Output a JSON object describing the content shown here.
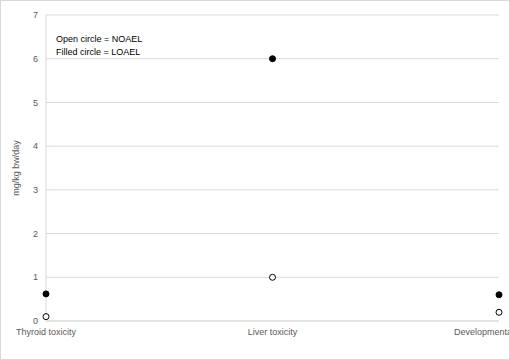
{
  "chart_data": {
    "type": "scatter",
    "y_label": "mg/kg bw/day",
    "annotations": [
      "Open circle = NOAEL",
      "Filled circle = LOAEL"
    ],
    "categories": [
      "Thyroid toxicity",
      "Liver toxicity",
      "Developmental toxicity"
    ],
    "series": [
      {
        "color": "#000000",
        "marker": "open",
        "values": [
          0.1,
          1,
          0.2
        ]
      },
      {
        "color": "#000000",
        "marker": "filled",
        "values": [
          0.62,
          6,
          0.6
        ]
      }
    ],
    "ylim": [
      0,
      7
    ],
    "yticks": [
      0,
      1,
      2,
      3,
      4,
      5,
      6,
      7
    ],
    "grid": true
  }
}
